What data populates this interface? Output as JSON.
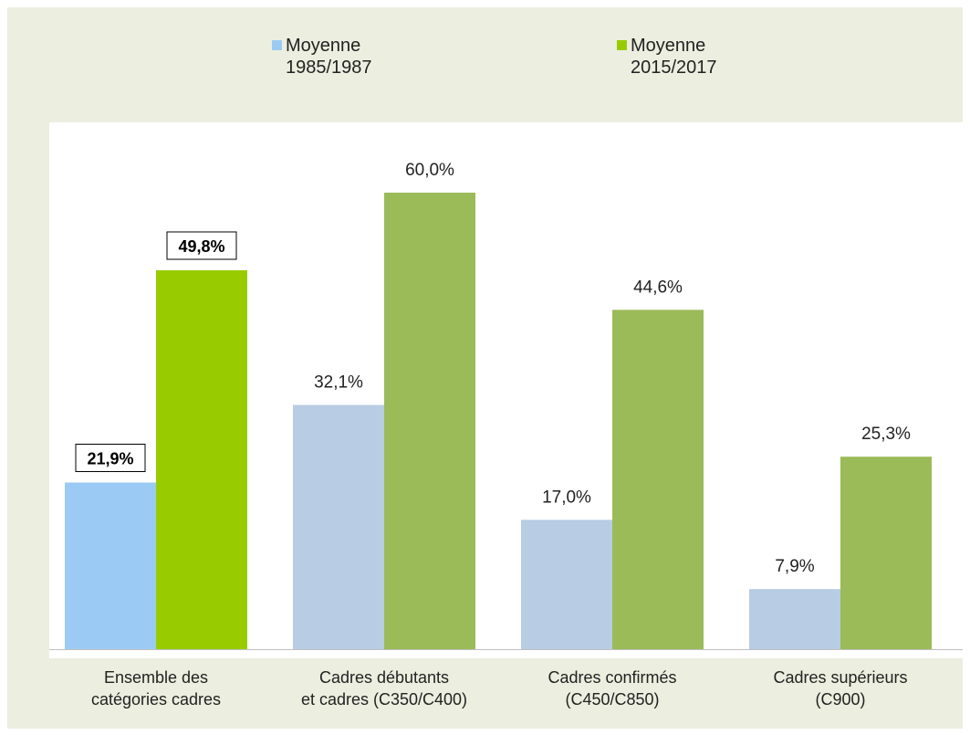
{
  "legend": [
    {
      "label": "Moyenne\n1985/1987",
      "color": "#9BCBF4"
    },
    {
      "label": "Moyenne\n2015/2017",
      "color": "#99CC00"
    }
  ],
  "chart_data": {
    "type": "bar",
    "categories": [
      "Ensemble des\ncatégories cadres",
      "Cadres débutants\net cadres (C350/C400)",
      "Cadres confirmés\n(C450/C850)",
      "Cadres supérieurs\n(C900)"
    ],
    "series": [
      {
        "name": "Moyenne 1985/1987",
        "values": [
          21.9,
          32.1,
          17.0,
          7.9
        ],
        "labels": [
          "21,9%",
          "32,1%",
          "17,0%",
          "7,9%"
        ]
      },
      {
        "name": "Moyenne 2015/2017",
        "values": [
          49.8,
          60.0,
          44.6,
          25.3
        ],
        "labels": [
          "49,8%",
          "60,0%",
          "44,6%",
          "25,3%"
        ]
      }
    ],
    "highlight_category": 0,
    "colors": {
      "series1_highlight": "#9BCBF4",
      "series2_highlight": "#99CC00",
      "series1": "#B8CCE4",
      "series2": "#9BBB59"
    },
    "ylim": [
      0,
      70
    ],
    "grid": false
  }
}
